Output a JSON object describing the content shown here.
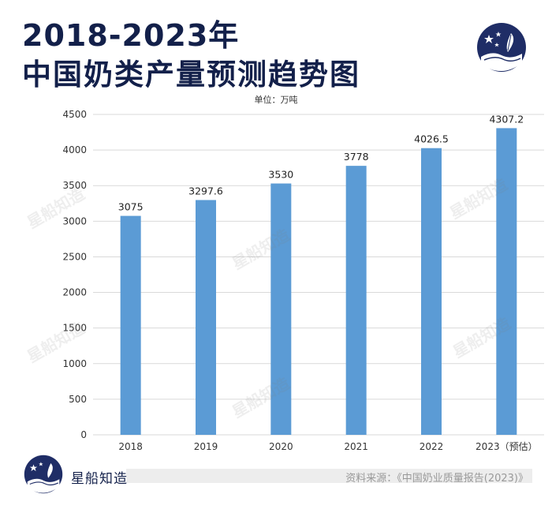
{
  "title_line1": "2018-2023年",
  "title_line2": "中国奶类产量预测趋势图",
  "unit_label": "单位：万吨",
  "brand": "星船知造",
  "source": "资料来源：《中国奶业质量报告(2023)》",
  "watermark": "星船知造",
  "colors": {
    "bar": "#5b9bd5",
    "title": "#13204a",
    "grid": "#d9d9d9",
    "logo": "#1f2d66"
  },
  "chart_data": {
    "type": "bar",
    "categories": [
      "2018",
      "2019",
      "2020",
      "2021",
      "2022",
      "2023（预估）"
    ],
    "values": [
      3075,
      3297.6,
      3530,
      3778,
      4026.5,
      4307.2
    ],
    "value_labels": [
      "3075",
      "3297.6",
      "3530",
      "3778",
      "4026.5",
      "4307.2"
    ],
    "ylim": [
      0,
      4500
    ],
    "yticks": [
      0,
      500,
      1000,
      1500,
      2000,
      2500,
      3000,
      3500,
      4000,
      4500
    ],
    "grid": true,
    "title": "2018-2023年 中国奶类产量预测趋势图",
    "ylabel": "单位：万吨",
    "xlabel": ""
  }
}
